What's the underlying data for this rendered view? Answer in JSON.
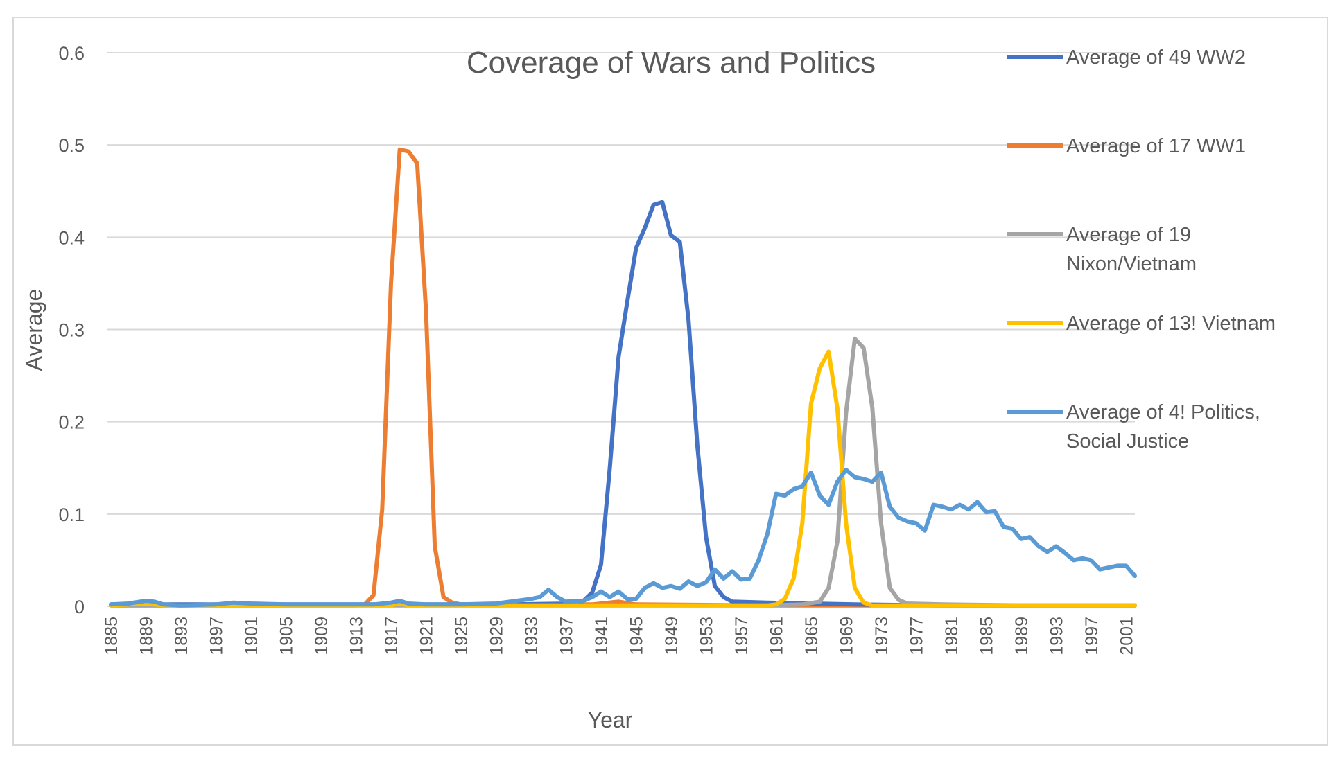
{
  "chart_data": {
    "type": "line",
    "title": "Coverage of Wars and Politics",
    "xlabel": "Year",
    "ylabel": "Average",
    "ylim": [
      0,
      0.6
    ],
    "y_ticks": [
      "0",
      "0.1",
      "0.2",
      "0.3",
      "0.4",
      "0.5",
      "0.6"
    ],
    "x_range": [
      1885,
      2002
    ],
    "x_tick_labels": [
      "1885",
      "1889",
      "1893",
      "1897",
      "1901",
      "1905",
      "1909",
      "1913",
      "1917",
      "1921",
      "1925",
      "1929",
      "1933",
      "1937",
      "1941",
      "1945",
      "1949",
      "1953",
      "1957",
      "1961",
      "1965",
      "1969",
      "1973",
      "1977",
      "1981",
      "1985",
      "1989",
      "1993",
      "1997",
      "2001"
    ],
    "grid": "horizontal",
    "legend_position": "right",
    "series": [
      {
        "name": "Average of 49 WW2",
        "color": "#4472c4",
        "points": [
          [
            1885,
            0.002
          ],
          [
            1890,
            0.002
          ],
          [
            1900,
            0.002
          ],
          [
            1910,
            0.002
          ],
          [
            1920,
            0.002
          ],
          [
            1930,
            0.002
          ],
          [
            1938,
            0.003
          ],
          [
            1939,
            0.006
          ],
          [
            1940,
            0.015
          ],
          [
            1941,
            0.045
          ],
          [
            1942,
            0.15
          ],
          [
            1943,
            0.27
          ],
          [
            1944,
            0.33
          ],
          [
            1945,
            0.388
          ],
          [
            1946,
            0.41
          ],
          [
            1947,
            0.435
          ],
          [
            1948,
            0.438
          ],
          [
            1949,
            0.402
          ],
          [
            1950,
            0.395
          ],
          [
            1951,
            0.31
          ],
          [
            1952,
            0.175
          ],
          [
            1953,
            0.075
          ],
          [
            1954,
            0.022
          ],
          [
            1955,
            0.01
          ],
          [
            1956,
            0.005
          ],
          [
            1960,
            0.004
          ],
          [
            1965,
            0.003
          ],
          [
            1970,
            0.002
          ],
          [
            1980,
            0.001
          ],
          [
            2002,
            0.001
          ]
        ]
      },
      {
        "name": "Average of 17 WW1",
        "color": "#ed7d31",
        "points": [
          [
            1885,
            0.001
          ],
          [
            1900,
            0.001
          ],
          [
            1913,
            0.001
          ],
          [
            1914,
            0.002
          ],
          [
            1915,
            0.012
          ],
          [
            1916,
            0.105
          ],
          [
            1917,
            0.35
          ],
          [
            1918,
            0.495
          ],
          [
            1919,
            0.493
          ],
          [
            1920,
            0.48
          ],
          [
            1921,
            0.32
          ],
          [
            1922,
            0.065
          ],
          [
            1923,
            0.01
          ],
          [
            1924,
            0.004
          ],
          [
            1925,
            0.002
          ],
          [
            1930,
            0.002
          ],
          [
            1940,
            0.002
          ],
          [
            1943,
            0.005
          ],
          [
            1945,
            0.002
          ],
          [
            1960,
            0.001
          ],
          [
            2002,
            0.001
          ]
        ]
      },
      {
        "name": "Average of 19 Nixon/Vietnam",
        "color": "#a5a5a5",
        "points": [
          [
            1885,
            0.001
          ],
          [
            1940,
            0.001
          ],
          [
            1960,
            0.001
          ],
          [
            1964,
            0.002
          ],
          [
            1966,
            0.005
          ],
          [
            1967,
            0.02
          ],
          [
            1968,
            0.07
          ],
          [
            1969,
            0.21
          ],
          [
            1970,
            0.29
          ],
          [
            1971,
            0.28
          ],
          [
            1972,
            0.215
          ],
          [
            1973,
            0.09
          ],
          [
            1974,
            0.02
          ],
          [
            1975,
            0.007
          ],
          [
            1976,
            0.003
          ],
          [
            1980,
            0.002
          ],
          [
            1990,
            0.001
          ],
          [
            2002,
            0.001
          ]
        ]
      },
      {
        "name": "Average of 13! Vietnam",
        "color": "#ffc000",
        "points": [
          [
            1885,
            0.001
          ],
          [
            1889,
            0.003
          ],
          [
            1891,
            0.001
          ],
          [
            1917,
            0.001
          ],
          [
            1918,
            0.003
          ],
          [
            1919,
            0.001
          ],
          [
            1960,
            0.001
          ],
          [
            1961,
            0.002
          ],
          [
            1962,
            0.008
          ],
          [
            1963,
            0.03
          ],
          [
            1964,
            0.09
          ],
          [
            1965,
            0.22
          ],
          [
            1966,
            0.258
          ],
          [
            1967,
            0.276
          ],
          [
            1968,
            0.215
          ],
          [
            1969,
            0.09
          ],
          [
            1970,
            0.02
          ],
          [
            1971,
            0.004
          ],
          [
            1972,
            0.001
          ],
          [
            2002,
            0.001
          ]
        ]
      },
      {
        "name": "Average of 4! Politics, Social Justice",
        "color": "#5b9bd5",
        "points": [
          [
            1885,
            0.002
          ],
          [
            1887,
            0.003
          ],
          [
            1889,
            0.006
          ],
          [
            1890,
            0.005
          ],
          [
            1891,
            0.002
          ],
          [
            1893,
            0.001
          ],
          [
            1897,
            0.002
          ],
          [
            1899,
            0.004
          ],
          [
            1901,
            0.003
          ],
          [
            1905,
            0.002
          ],
          [
            1909,
            0.002
          ],
          [
            1913,
            0.002
          ],
          [
            1915,
            0.002
          ],
          [
            1917,
            0.004
          ],
          [
            1918,
            0.006
          ],
          [
            1919,
            0.003
          ],
          [
            1921,
            0.002
          ],
          [
            1925,
            0.002
          ],
          [
            1929,
            0.003
          ],
          [
            1933,
            0.008
          ],
          [
            1934,
            0.01
          ],
          [
            1935,
            0.018
          ],
          [
            1936,
            0.01
          ],
          [
            1937,
            0.005
          ],
          [
            1939,
            0.006
          ],
          [
            1940,
            0.01
          ],
          [
            1941,
            0.016
          ],
          [
            1942,
            0.01
          ],
          [
            1943,
            0.016
          ],
          [
            1944,
            0.008
          ],
          [
            1945,
            0.008
          ],
          [
            1946,
            0.02
          ],
          [
            1947,
            0.025
          ],
          [
            1948,
            0.02
          ],
          [
            1949,
            0.022
          ],
          [
            1950,
            0.019
          ],
          [
            1951,
            0.027
          ],
          [
            1952,
            0.022
          ],
          [
            1953,
            0.026
          ],
          [
            1954,
            0.04
          ],
          [
            1955,
            0.03
          ],
          [
            1956,
            0.038
          ],
          [
            1957,
            0.029
          ],
          [
            1958,
            0.03
          ],
          [
            1959,
            0.05
          ],
          [
            1960,
            0.078
          ],
          [
            1961,
            0.122
          ],
          [
            1962,
            0.12
          ],
          [
            1963,
            0.127
          ],
          [
            1964,
            0.13
          ],
          [
            1965,
            0.145
          ],
          [
            1966,
            0.12
          ],
          [
            1967,
            0.11
          ],
          [
            1968,
            0.135
          ],
          [
            1969,
            0.148
          ],
          [
            1970,
            0.14
          ],
          [
            1971,
            0.138
          ],
          [
            1972,
            0.135
          ],
          [
            1973,
            0.145
          ],
          [
            1974,
            0.108
          ],
          [
            1975,
            0.096
          ],
          [
            1976,
            0.092
          ],
          [
            1977,
            0.09
          ],
          [
            1978,
            0.082
          ],
          [
            1979,
            0.11
          ],
          [
            1980,
            0.108
          ],
          [
            1981,
            0.105
          ],
          [
            1982,
            0.11
          ],
          [
            1983,
            0.105
          ],
          [
            1984,
            0.113
          ],
          [
            1985,
            0.102
          ],
          [
            1986,
            0.103
          ],
          [
            1987,
            0.086
          ],
          [
            1988,
            0.084
          ],
          [
            1989,
            0.073
          ],
          [
            1990,
            0.075
          ],
          [
            1991,
            0.065
          ],
          [
            1992,
            0.059
          ],
          [
            1993,
            0.065
          ],
          [
            1994,
            0.058
          ],
          [
            1995,
            0.05
          ],
          [
            1996,
            0.052
          ],
          [
            1997,
            0.05
          ],
          [
            1998,
            0.04
          ],
          [
            1999,
            0.042
          ],
          [
            2000,
            0.044
          ],
          [
            2001,
            0.044
          ],
          [
            2002,
            0.033
          ]
        ]
      }
    ]
  }
}
